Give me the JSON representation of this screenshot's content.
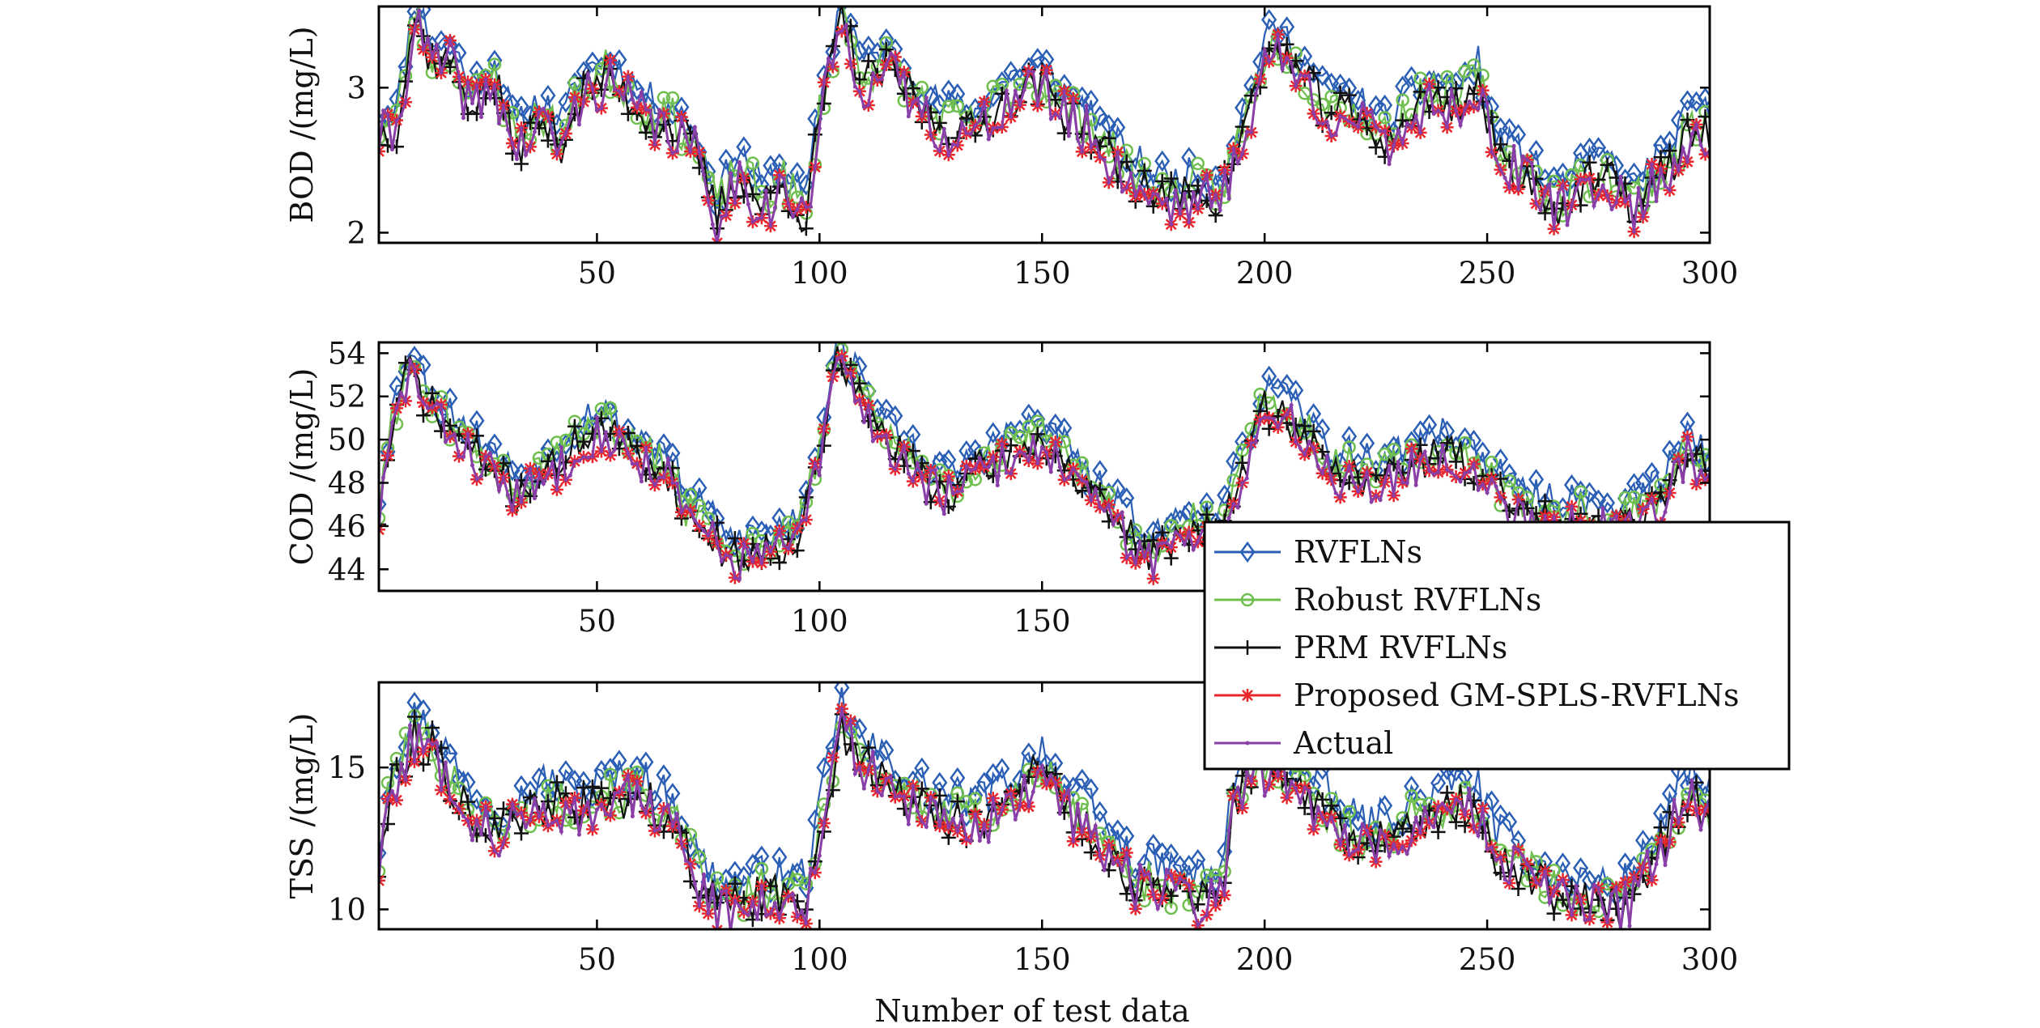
{
  "chart_data": [
    {
      "type": "line",
      "ylabel": "BOD /(mg/L)",
      "xlabel": "",
      "xlim": [
        1,
        300
      ],
      "ylim": [
        1.93,
        3.56
      ],
      "xticks": [
        50,
        100,
        150,
        200,
        250,
        300
      ],
      "yticks": [
        2,
        3
      ],
      "keypoints": [
        [
          1,
          2.7
        ],
        [
          5,
          2.75
        ],
        [
          9,
          3.5
        ],
        [
          13,
          3.2
        ],
        [
          17,
          3.2
        ],
        [
          22,
          2.9
        ],
        [
          27,
          3.05
        ],
        [
          32,
          2.6
        ],
        [
          37,
          2.8
        ],
        [
          42,
          2.65
        ],
        [
          47,
          3.0
        ],
        [
          52,
          3.1
        ],
        [
          57,
          2.95
        ],
        [
          62,
          2.8
        ],
        [
          67,
          2.75
        ],
        [
          72,
          2.6
        ],
        [
          77,
          2.15
        ],
        [
          82,
          2.45
        ],
        [
          87,
          2.2
        ],
        [
          92,
          2.35
        ],
        [
          97,
          2.1
        ],
        [
          100,
          2.8
        ],
        [
          105,
          3.5
        ],
        [
          110,
          3.05
        ],
        [
          115,
          3.15
        ],
        [
          120,
          3.0
        ],
        [
          125,
          2.8
        ],
        [
          130,
          2.75
        ],
        [
          135,
          2.7
        ],
        [
          140,
          2.9
        ],
        [
          145,
          3.0
        ],
        [
          150,
          3.05
        ],
        [
          155,
          2.85
        ],
        [
          160,
          2.75
        ],
        [
          165,
          2.55
        ],
        [
          170,
          2.4
        ],
        [
          175,
          2.3
        ],
        [
          180,
          2.25
        ],
        [
          185,
          2.3
        ],
        [
          190,
          2.25
        ],
        [
          195,
          2.7
        ],
        [
          200,
          3.2
        ],
        [
          203,
          3.3
        ],
        [
          208,
          3.1
        ],
        [
          213,
          2.9
        ],
        [
          218,
          2.85
        ],
        [
          223,
          2.75
        ],
        [
          228,
          2.65
        ],
        [
          233,
          2.85
        ],
        [
          238,
          2.95
        ],
        [
          243,
          2.9
        ],
        [
          248,
          3.05
        ],
        [
          252,
          2.55
        ],
        [
          257,
          2.45
        ],
        [
          262,
          2.3
        ],
        [
          267,
          2.2
        ],
        [
          272,
          2.35
        ],
        [
          277,
          2.4
        ],
        [
          282,
          2.2
        ],
        [
          287,
          2.35
        ],
        [
          292,
          2.5
        ],
        [
          296,
          2.75
        ],
        [
          300,
          2.7
        ]
      ],
      "series": [
        {
          "name": "RVFLNs",
          "offset": 0.12,
          "noise": 0.12,
          "color": "#2b5fb5",
          "marker": "diamond",
          "seed": 11
        },
        {
          "name": "Robust RVFLNs",
          "offset": 0.03,
          "noise": 0.15,
          "color": "#6fbf4f",
          "marker": "circle",
          "seed": 23
        },
        {
          "name": "PRM RVFLNs",
          "offset": -0.02,
          "noise": 0.15,
          "color": "#111111",
          "marker": "plus",
          "seed": 37
        },
        {
          "name": "Proposed GM-SPLS-RVFLNs",
          "offset": -0.05,
          "noise": 0.18,
          "color": "#e8262b",
          "marker": "star",
          "seed": 41
        },
        {
          "name": "Actual",
          "offset": -0.05,
          "noise": 0.18,
          "color": "#8a3fa8",
          "marker": "dot",
          "seed": 41
        }
      ]
    },
    {
      "type": "line",
      "ylabel": "COD /(mg/L)",
      "xlabel": "",
      "xlim": [
        1,
        300
      ],
      "ylim": [
        43.0,
        54.5
      ],
      "xticks": [
        50,
        100,
        150,
        200,
        250,
        300
      ],
      "yticks": [
        44,
        46,
        48,
        50,
        52,
        54
      ],
      "keypoints": [
        [
          1,
          46.5
        ],
        [
          4,
          50.5
        ],
        [
          8,
          53.5
        ],
        [
          12,
          51.5
        ],
        [
          17,
          50.5
        ],
        [
          22,
          49.5
        ],
        [
          27,
          48.5
        ],
        [
          32,
          47.5
        ],
        [
          37,
          48.2
        ],
        [
          42,
          49.0
        ],
        [
          47,
          50.3
        ],
        [
          52,
          50.5
        ],
        [
          57,
          49.5
        ],
        [
          62,
          49.0
        ],
        [
          66,
          48.5
        ],
        [
          70,
          46.5
        ],
        [
          75,
          45.8
        ],
        [
          80,
          44.5
        ],
        [
          85,
          44.8
        ],
        [
          90,
          45.0
        ],
        [
          95,
          45.5
        ],
        [
          100,
          49.0
        ],
        [
          104,
          54.0
        ],
        [
          110,
          51.5
        ],
        [
          115,
          50.0
        ],
        [
          120,
          49.0
        ],
        [
          125,
          48.0
        ],
        [
          130,
          47.5
        ],
        [
          135,
          48.5
        ],
        [
          140,
          49.0
        ],
        [
          145,
          49.5
        ],
        [
          150,
          50.0
        ],
        [
          155,
          49.0
        ],
        [
          160,
          47.5
        ],
        [
          165,
          46.5
        ],
        [
          170,
          45.5
        ],
        [
          175,
          44.5
        ],
        [
          180,
          45.5
        ],
        [
          185,
          46.0
        ],
        [
          190,
          45.5
        ],
        [
          195,
          48.5
        ],
        [
          200,
          51.5
        ],
        [
          205,
          51.0
        ],
        [
          210,
          50.0
        ],
        [
          215,
          48.5
        ],
        [
          220,
          48.5
        ],
        [
          225,
          48.0
        ],
        [
          230,
          48.5
        ],
        [
          235,
          49.0
        ],
        [
          240,
          49.5
        ],
        [
          245,
          49.0
        ],
        [
          250,
          48.0
        ],
        [
          255,
          47.0
        ],
        [
          260,
          46.5
        ],
        [
          265,
          46.3
        ],
        [
          270,
          46.5
        ],
        [
          275,
          46.0
        ],
        [
          280,
          46.2
        ],
        [
          285,
          46.5
        ],
        [
          290,
          47.5
        ],
        [
          295,
          49.5
        ],
        [
          300,
          48.5
        ]
      ],
      "series": [
        {
          "name": "RVFLNs",
          "offset": 0.9,
          "noise": 0.8,
          "color": "#2b5fb5",
          "marker": "diamond",
          "seed": 53
        },
        {
          "name": "Robust RVFLNs",
          "offset": 0.3,
          "noise": 0.9,
          "color": "#6fbf4f",
          "marker": "circle",
          "seed": 61
        },
        {
          "name": "PRM RVFLNs",
          "offset": 0.0,
          "noise": 0.9,
          "color": "#111111",
          "marker": "plus",
          "seed": 71
        },
        {
          "name": "Proposed GM-SPLS-RVFLNs",
          "offset": -0.2,
          "noise": 1.0,
          "color": "#e8262b",
          "marker": "star",
          "seed": 83
        },
        {
          "name": "Actual",
          "offset": -0.2,
          "noise": 1.0,
          "color": "#8a3fa8",
          "marker": "dot",
          "seed": 83
        }
      ]
    },
    {
      "type": "line",
      "ylabel": "TSS /(mg/L)",
      "xlabel": "Number of test data",
      "xlim": [
        1,
        300
      ],
      "ylim": [
        9.3,
        18.0
      ],
      "xticks": [
        50,
        100,
        150,
        200,
        250,
        300
      ],
      "yticks": [
        10,
        15
      ],
      "keypoints": [
        [
          1,
          11.5
        ],
        [
          4,
          14.5
        ],
        [
          9,
          16.0
        ],
        [
          14,
          15.5
        ],
        [
          19,
          14.0
        ],
        [
          24,
          13.0
        ],
        [
          29,
          12.8
        ],
        [
          34,
          13.2
        ],
        [
          39,
          13.8
        ],
        [
          44,
          13.5
        ],
        [
          49,
          13.6
        ],
        [
          54,
          13.8
        ],
        [
          59,
          14.0
        ],
        [
          64,
          13.5
        ],
        [
          69,
          12.5
        ],
        [
          73,
          11.0
        ],
        [
          78,
          10.0
        ],
        [
          83,
          10.2
        ],
        [
          88,
          10.5
        ],
        [
          93,
          10.3
        ],
        [
          97,
          10.5
        ],
        [
          101,
          13.5
        ],
        [
          105,
          16.5
        ],
        [
          110,
          15.0
        ],
        [
          115,
          14.5
        ],
        [
          120,
          13.8
        ],
        [
          125,
          13.5
        ],
        [
          130,
          13.2
        ],
        [
          135,
          13.0
        ],
        [
          140,
          13.5
        ],
        [
          145,
          14.0
        ],
        [
          150,
          15.0
        ],
        [
          155,
          13.5
        ],
        [
          160,
          13.0
        ],
        [
          165,
          12.0
        ],
        [
          170,
          11.0
        ],
        [
          175,
          10.8
        ],
        [
          180,
          10.5
        ],
        [
          185,
          10.4
        ],
        [
          190,
          10.5
        ],
        [
          193,
          13.5
        ],
        [
          198,
          15.0
        ],
        [
          203,
          15.0
        ],
        [
          208,
          14.2
        ],
        [
          213,
          13.5
        ],
        [
          218,
          12.5
        ],
        [
          223,
          12.3
        ],
        [
          228,
          12.5
        ],
        [
          233,
          13.0
        ],
        [
          238,
          13.2
        ],
        [
          243,
          13.8
        ],
        [
          248,
          13.5
        ],
        [
          252,
          12.0
        ],
        [
          256,
          11.5
        ],
        [
          260,
          11.0
        ],
        [
          265,
          10.5
        ],
        [
          270,
          10.3
        ],
        [
          275,
          10.2
        ],
        [
          280,
          10.0
        ],
        [
          285,
          11.0
        ],
        [
          290,
          12.5
        ],
        [
          295,
          14.0
        ],
        [
          300,
          13.2
        ]
      ],
      "series": [
        {
          "name": "RVFLNs",
          "offset": 0.8,
          "noise": 0.7,
          "color": "#2b5fb5",
          "marker": "diamond",
          "seed": 97
        },
        {
          "name": "Robust RVFLNs",
          "offset": 0.2,
          "noise": 0.8,
          "color": "#6fbf4f",
          "marker": "circle",
          "seed": 101
        },
        {
          "name": "PRM RVFLNs",
          "offset": 0.0,
          "noise": 0.8,
          "color": "#111111",
          "marker": "plus",
          "seed": 113
        },
        {
          "name": "Proposed GM-SPLS-RVFLNs",
          "offset": -0.1,
          "noise": 0.9,
          "color": "#e8262b",
          "marker": "star",
          "seed": 127
        },
        {
          "name": "Actual",
          "offset": -0.1,
          "noise": 0.9,
          "color": "#8a3fa8",
          "marker": "dot",
          "seed": 127
        }
      ]
    }
  ],
  "legend": {
    "placement": "right-middle",
    "items": [
      {
        "label": "RVFLNs",
        "color": "#2b5fb5",
        "marker": "diamond"
      },
      {
        "label": "Robust RVFLNs",
        "color": "#6fbf4f",
        "marker": "circle"
      },
      {
        "label": "PRM RVFLNs",
        "color": "#111111",
        "marker": "plus"
      },
      {
        "label": "Proposed GM-SPLS-RVFLNs",
        "color": "#e8262b",
        "marker": "star"
      },
      {
        "label": "Actual",
        "color": "#8a3fa8",
        "marker": "dot"
      }
    ]
  }
}
